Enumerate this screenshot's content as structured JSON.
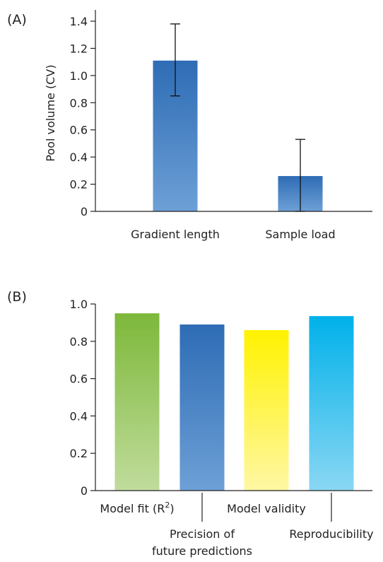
{
  "chart_data": [
    {
      "panel_label": "(A)",
      "type": "bar",
      "ylabel": "Pool volume (CV)",
      "ylim": [
        0,
        1.4
      ],
      "yticks": [
        "0",
        "0.2",
        "0.4",
        "0.6",
        "0.8",
        "1.0",
        "1.2",
        "1.4"
      ],
      "ytick_values": [
        0,
        0.2,
        0.4,
        0.6,
        0.8,
        1.0,
        1.2,
        1.4
      ],
      "categories": [
        "Gradient length",
        "Sample load"
      ],
      "values": [
        1.11,
        0.26
      ],
      "error_low": [
        0.85,
        0.0
      ],
      "error_high": [
        1.38,
        0.53
      ],
      "colors": [
        [
          "#2e6cb5",
          "#6da0d6"
        ],
        [
          "#2e6cb5",
          "#6da0d6"
        ]
      ]
    },
    {
      "panel_label": "(B)",
      "type": "bar",
      "ylim": [
        0,
        1.0
      ],
      "yticks": [
        "0",
        "0.2",
        "0.4",
        "0.6",
        "0.8",
        "1.0"
      ],
      "ytick_values": [
        0,
        0.2,
        0.4,
        0.6,
        0.8,
        1.0
      ],
      "categories": [
        {
          "label": "Model fit (R",
          "sup": "2",
          "suffix": ")"
        },
        {
          "lines": [
            "Precision of",
            "future predictions"
          ]
        },
        {
          "label": "Model validity"
        },
        {
          "label": "Reproducibility"
        }
      ],
      "values": [
        0.95,
        0.89,
        0.86,
        0.935
      ],
      "colors": [
        [
          "#7db83a",
          "#c0dc9c"
        ],
        [
          "#2e6cb5",
          "#6da0d6"
        ],
        [
          "#fff200",
          "#fff7a5"
        ],
        [
          "#00b1ea",
          "#8ad7f3"
        ]
      ]
    }
  ]
}
